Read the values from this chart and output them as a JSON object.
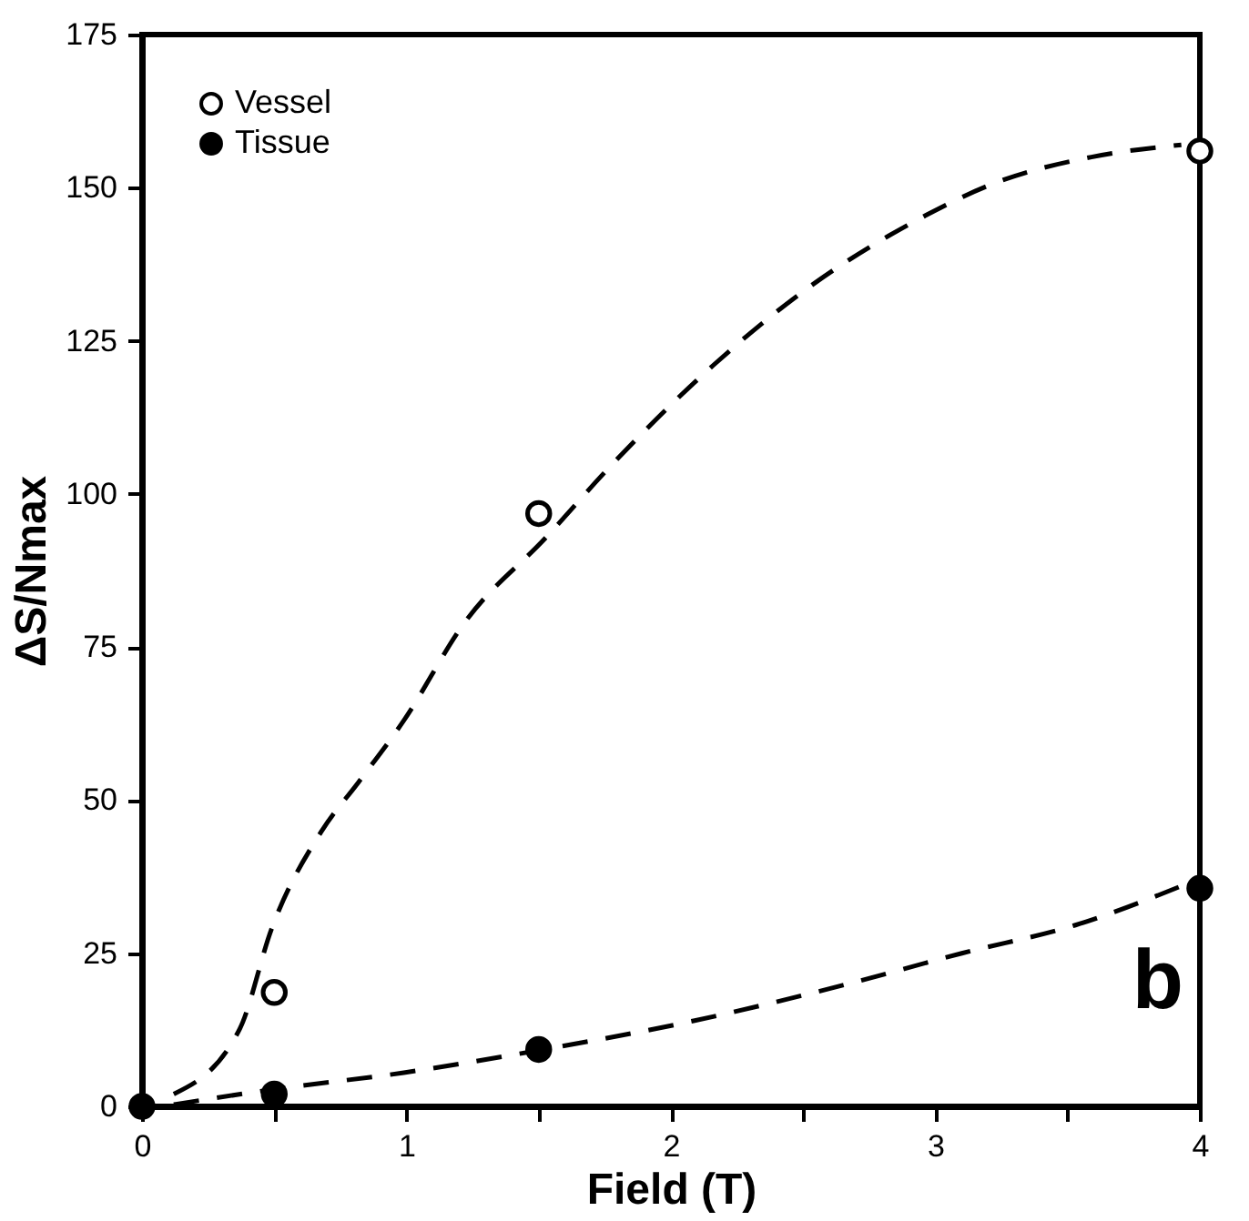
{
  "chart_data": {
    "type": "scatter",
    "xlabel": "Field (T)",
    "ylabel": "ΔS/Nmax",
    "xlim": [
      0,
      4
    ],
    "ylim": [
      0,
      175
    ],
    "xticks": [
      0,
      {
        "value": 0.5,
        "label": null
      },
      1,
      {
        "value": 1.5,
        "label": null
      },
      2,
      {
        "value": 2.5,
        "label": null
      },
      3,
      {
        "value": 3.5,
        "label": null
      },
      4
    ],
    "yticks": [
      0,
      25,
      50,
      75,
      100,
      125,
      150,
      175
    ],
    "legend": "top left",
    "marker": "circle",
    "grid": false,
    "annotations": [
      "b"
    ],
    "series": [
      {
        "name": "Vessel",
        "color": "#ffffff",
        "x": [
          0.5,
          1.5,
          4
        ],
        "values": [
          18.6,
          96.8,
          156
        ]
      },
      {
        "name": "Tissue",
        "color": "#000000",
        "x": [
          0,
          0.5,
          1.5,
          4
        ],
        "values": [
          0,
          2,
          9.3,
          35.6
        ]
      },
      {
        "type": "line",
        "marker": "none",
        "line_style": "dashed",
        "color": "#000000",
        "x": [
          0.12,
          0.37,
          0.49,
          0.68,
          0.82,
          0.99,
          1.22,
          1.53,
          1.76,
          2.16,
          2.53,
          2.9,
          3.24,
          3.59,
          3.93
        ],
        "values": [
          2,
          12.7,
          29,
          45,
          53,
          63,
          79,
          93,
          104,
          121,
          134,
          144,
          151,
          155,
          157
        ]
      },
      {
        "type": "line",
        "marker": "none",
        "line_style": "dashed",
        "color": "#000000",
        "x": [
          0.12,
          0.5,
          0.99,
          1.48,
          2.09,
          2.67,
          3.1,
          3.53,
          3.96
        ],
        "values": [
          0.3,
          2.8,
          5.5,
          9,
          14,
          20,
          25,
          29.6,
          36.5
        ]
      }
    ]
  }
}
